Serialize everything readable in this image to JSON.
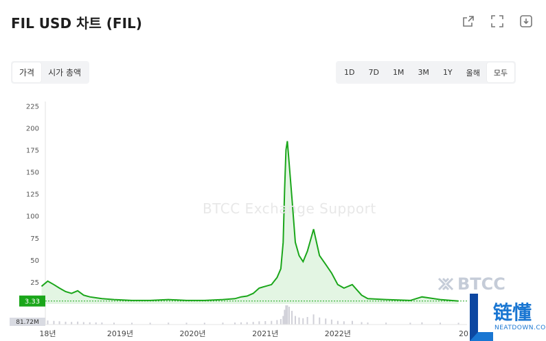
{
  "header": {
    "title": "FIL USD 차트 (FIL)",
    "icons": [
      "share-icon",
      "fullscreen-icon",
      "download-icon"
    ]
  },
  "tabs_left": [
    {
      "label": "가격",
      "active": true
    },
    {
      "label": "시가 총액",
      "active": false
    }
  ],
  "tabs_right": [
    {
      "label": "1D",
      "active": false
    },
    {
      "label": "7D",
      "active": false
    },
    {
      "label": "1M",
      "active": false
    },
    {
      "label": "3M",
      "active": false
    },
    {
      "label": "1Y",
      "active": false
    },
    {
      "label": "올해",
      "active": false
    },
    {
      "label": "모두",
      "active": true
    }
  ],
  "watermarks": {
    "center": "BTCC Exchange Support",
    "brand": "BTCC",
    "logo_cn": "链懂",
    "logo_en": "NEATDOWN.COM"
  },
  "colors": {
    "line": "#1aa61a",
    "fill": "#e3f5e3",
    "price_label_bg": "#1aa61a",
    "volume": "#d0d0d8"
  },
  "chart_data": {
    "type": "area",
    "ylim": [
      0,
      230
    ],
    "y_ticks": [
      "225",
      "200",
      "175",
      "150",
      "125",
      "100",
      "75",
      "50",
      "25"
    ],
    "x_ticks": [
      "18년",
      "2019년",
      "2020년",
      "2021년",
      "2022년",
      "20"
    ],
    "current_price_label": "3.33",
    "volume_label": "81.72M",
    "series": [
      {
        "x": [
          "2017-12",
          "2018-01",
          "2018-02",
          "2018-03",
          "2018-04",
          "2018-05",
          "2018-06",
          "2018-07",
          "2018-08",
          "2018-09",
          "2018-10",
          "2018-12",
          "2019-03",
          "2019-06",
          "2019-09",
          "2019-12",
          "2020-03",
          "2020-06",
          "2020-08",
          "2020-09",
          "2020-10",
          "2020-11",
          "2020-12",
          "2021-01",
          "2021-02",
          "2021-03",
          "2021-03-20",
          "2021-04-01",
          "2021-04-08",
          "2021-04-15",
          "2021-04-22",
          "2021-05-01",
          "2021-05-15",
          "2021-06-01",
          "2021-06-20",
          "2021-07-10",
          "2021-08-01",
          "2021-09-01",
          "2021-10-01",
          "2021-11-01",
          "2021-12-01",
          "2022-01-01",
          "2022-02-01",
          "2022-03-15",
          "2022-05-01",
          "2022-06-01",
          "2022-09-01",
          "2023-01-01",
          "2023-03-01",
          "2023-06-01",
          "2023-09-01"
        ],
        "values": [
          20,
          26,
          22,
          18,
          14,
          12,
          15,
          10,
          8,
          7,
          6,
          5,
          4,
          4,
          5,
          4,
          4,
          5,
          6,
          8,
          9,
          12,
          18,
          20,
          22,
          30,
          40,
          70,
          130,
          175,
          185,
          160,
          120,
          70,
          55,
          48,
          60,
          85,
          55,
          45,
          35,
          22,
          18,
          22,
          10,
          6,
          5,
          4,
          8,
          5,
          3.33
        ]
      }
    ]
  }
}
